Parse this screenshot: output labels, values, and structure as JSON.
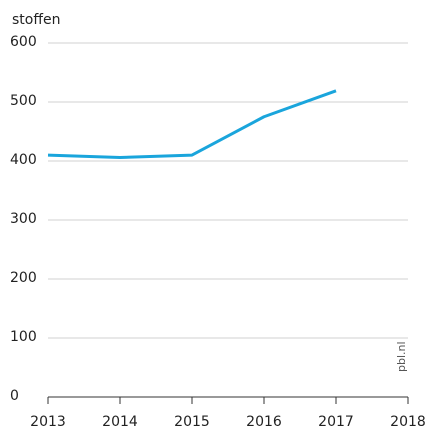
{
  "chart_data": {
    "type": "line",
    "y_label": "stoffen",
    "source": "pbl.nl",
    "x": [
      2013,
      2014,
      2015,
      2016,
      2017
    ],
    "series": [
      {
        "name": "stoffen",
        "color": "#1aa5dc",
        "values": [
          410,
          406,
          410,
          475,
          519
        ]
      }
    ],
    "xlim": [
      2013,
      2018
    ],
    "xticks": [
      2013,
      2014,
      2015,
      2016,
      2017,
      2018
    ],
    "ylim": [
      0,
      600
    ],
    "yticks": [
      0,
      100,
      200,
      300,
      400,
      500,
      600
    ],
    "grid": true
  }
}
